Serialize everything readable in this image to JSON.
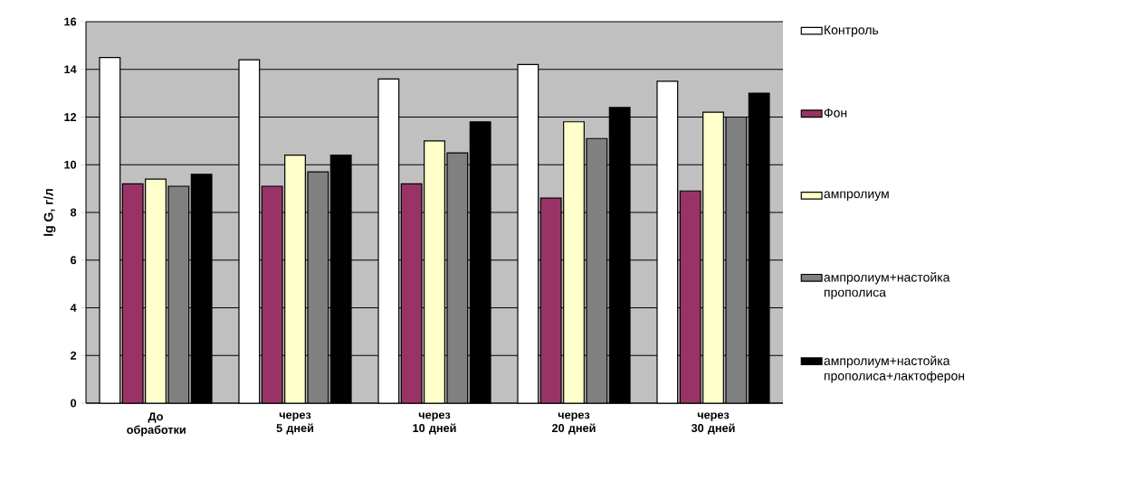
{
  "chart_data": {
    "type": "bar",
    "ylabel": "lg G, г/л",
    "categories": [
      "До обработки",
      "через 5 дней",
      "через 10 дней",
      "через 20 дней",
      "через 30 дней"
    ],
    "series": [
      {
        "name": "Контроль",
        "color": "#ffffff",
        "values": [
          14.5,
          14.4,
          13.6,
          14.2,
          13.5
        ]
      },
      {
        "name": "Фон",
        "color": "#993366",
        "values": [
          9.2,
          9.1,
          9.2,
          8.6,
          8.9
        ]
      },
      {
        "name": "ампролиум",
        "color": "#ffffcc",
        "values": [
          9.4,
          10.4,
          11.0,
          11.8,
          12.2
        ]
      },
      {
        "name": "ампролиум+настойка прополиса",
        "color": "#808080",
        "values": [
          9.1,
          9.7,
          10.5,
          11.1,
          12.0
        ]
      },
      {
        "name": "ампролиум+настойка прополиса+лактоферон",
        "color": "#000000",
        "values": [
          9.6,
          10.4,
          11.8,
          12.4,
          13.0
        ]
      }
    ],
    "ylim": [
      0,
      16
    ],
    "yticks": [
      0,
      2,
      4,
      6,
      8,
      10,
      12,
      14,
      16
    ],
    "grid": "y",
    "legend": "right"
  }
}
